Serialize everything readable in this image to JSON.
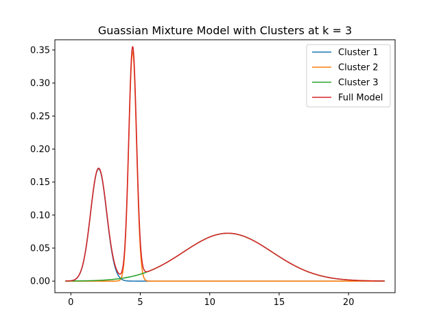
{
  "chart_data": {
    "type": "line",
    "title": "Guassian Mixture Model with Clusters at k = 3",
    "xlabel": "",
    "ylabel": "",
    "xlim": [
      -1.15,
      23.35
    ],
    "ylim": [
      -0.0175,
      0.3655
    ],
    "xticks": [
      0,
      5,
      10,
      15,
      20
    ],
    "xtick_labels": [
      "0",
      "5",
      "10",
      "15",
      "20"
    ],
    "yticks": [
      0.0,
      0.05,
      0.1,
      0.15,
      0.2,
      0.25,
      0.3,
      0.35
    ],
    "ytick_labels": [
      "0.00",
      "0.05",
      "0.10",
      "0.15",
      "0.20",
      "0.25",
      "0.30",
      "0.35"
    ],
    "grid": false,
    "legend_position": "top-right",
    "x_range": [
      -0.4,
      22.6
    ],
    "components": [
      {
        "name": "Cluster 1",
        "color": "#1f77b4",
        "mean": 2.0,
        "std": 0.58,
        "peak": 0.17
      },
      {
        "name": "Cluster 2",
        "color": "#ff7f0e",
        "mean": 4.45,
        "std": 0.28,
        "peak": 0.348
      },
      {
        "name": "Cluster 3",
        "color": "#2ca02c",
        "mean": 11.3,
        "std": 3.2,
        "peak": 0.0725
      }
    ],
    "series": [
      {
        "name": "Cluster 1",
        "color": "#1f77b4",
        "components": [
          0
        ]
      },
      {
        "name": "Cluster 2",
        "color": "#ff7f0e",
        "components": [
          1
        ]
      },
      {
        "name": "Cluster 3",
        "color": "#2ca02c",
        "components": [
          2
        ]
      },
      {
        "name": "Full Model",
        "color": "#d62728",
        "components": [
          0,
          1,
          2
        ]
      }
    ]
  }
}
